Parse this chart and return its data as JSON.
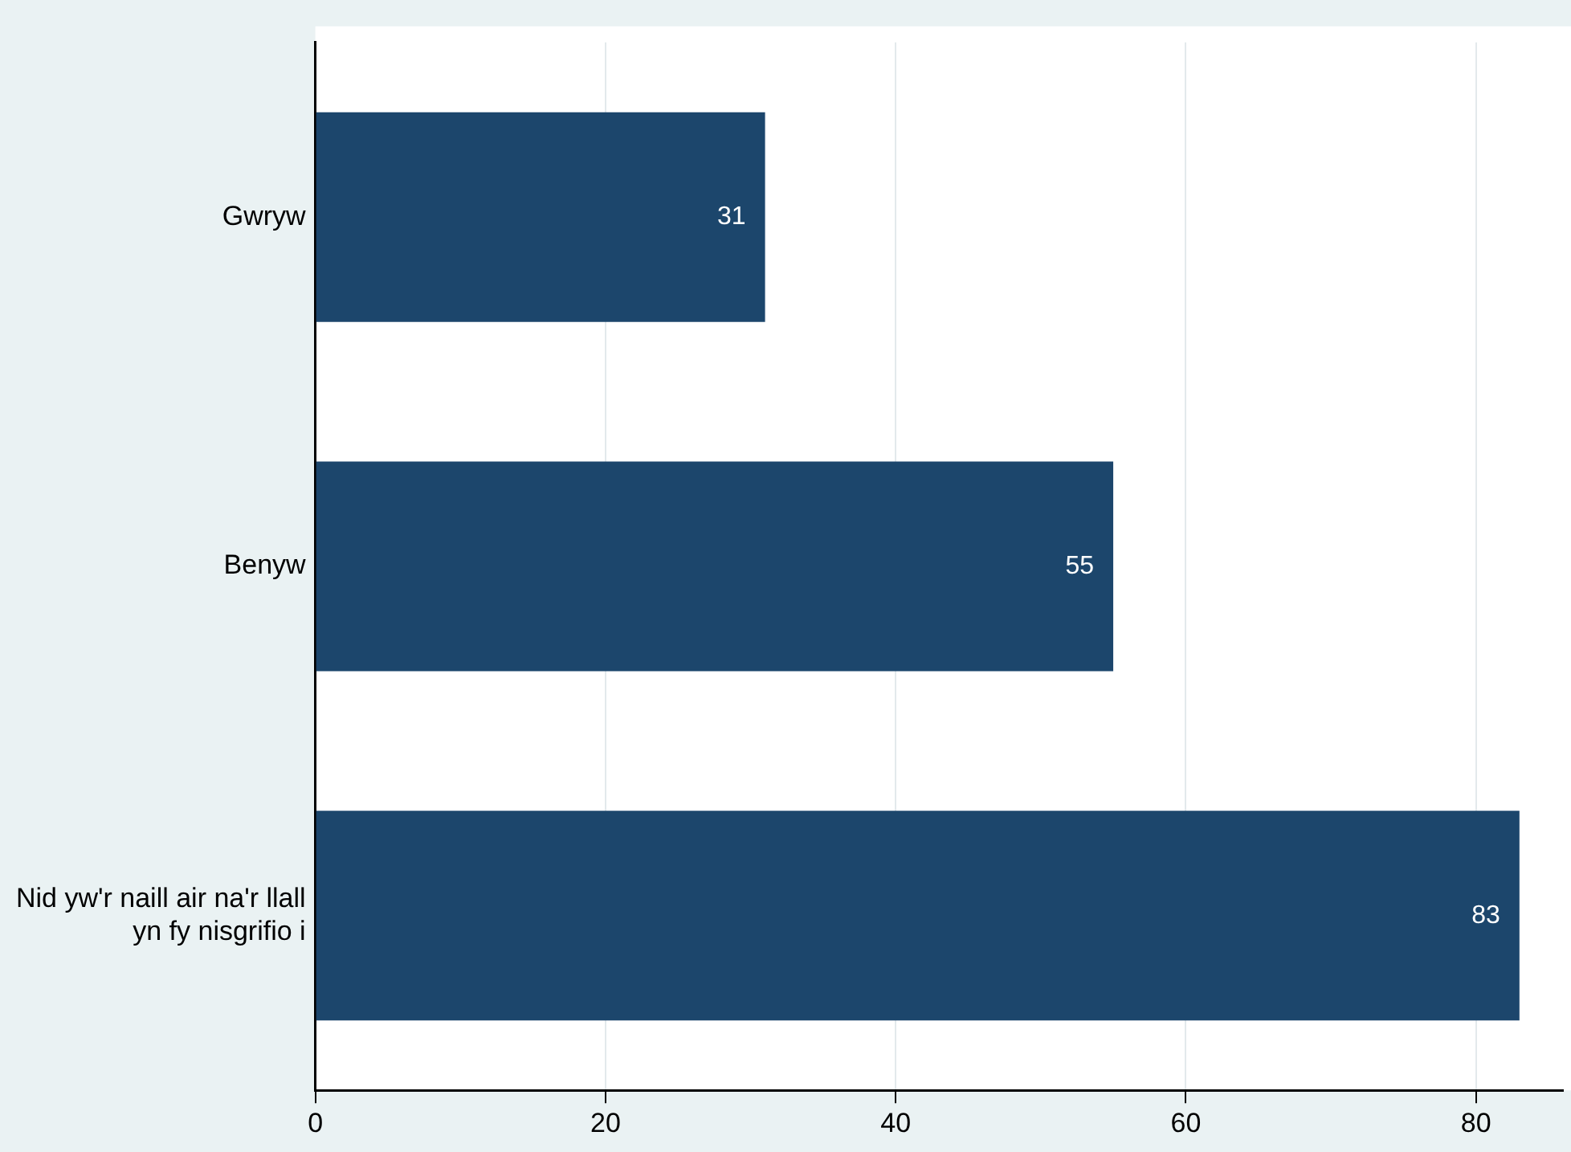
{
  "chart_data": {
    "type": "bar",
    "orientation": "horizontal",
    "categories": [
      "Gwryw",
      "Benyw",
      "Nid yw'r naill air na'r llall yn fy nisgrifio i"
    ],
    "values": [
      31,
      55,
      83
    ],
    "color": "#1c466c",
    "xlim": [
      0,
      86
    ],
    "xticks": [
      0,
      20,
      40,
      60,
      80
    ],
    "grid": "x",
    "data_labels": true,
    "legend": false
  }
}
